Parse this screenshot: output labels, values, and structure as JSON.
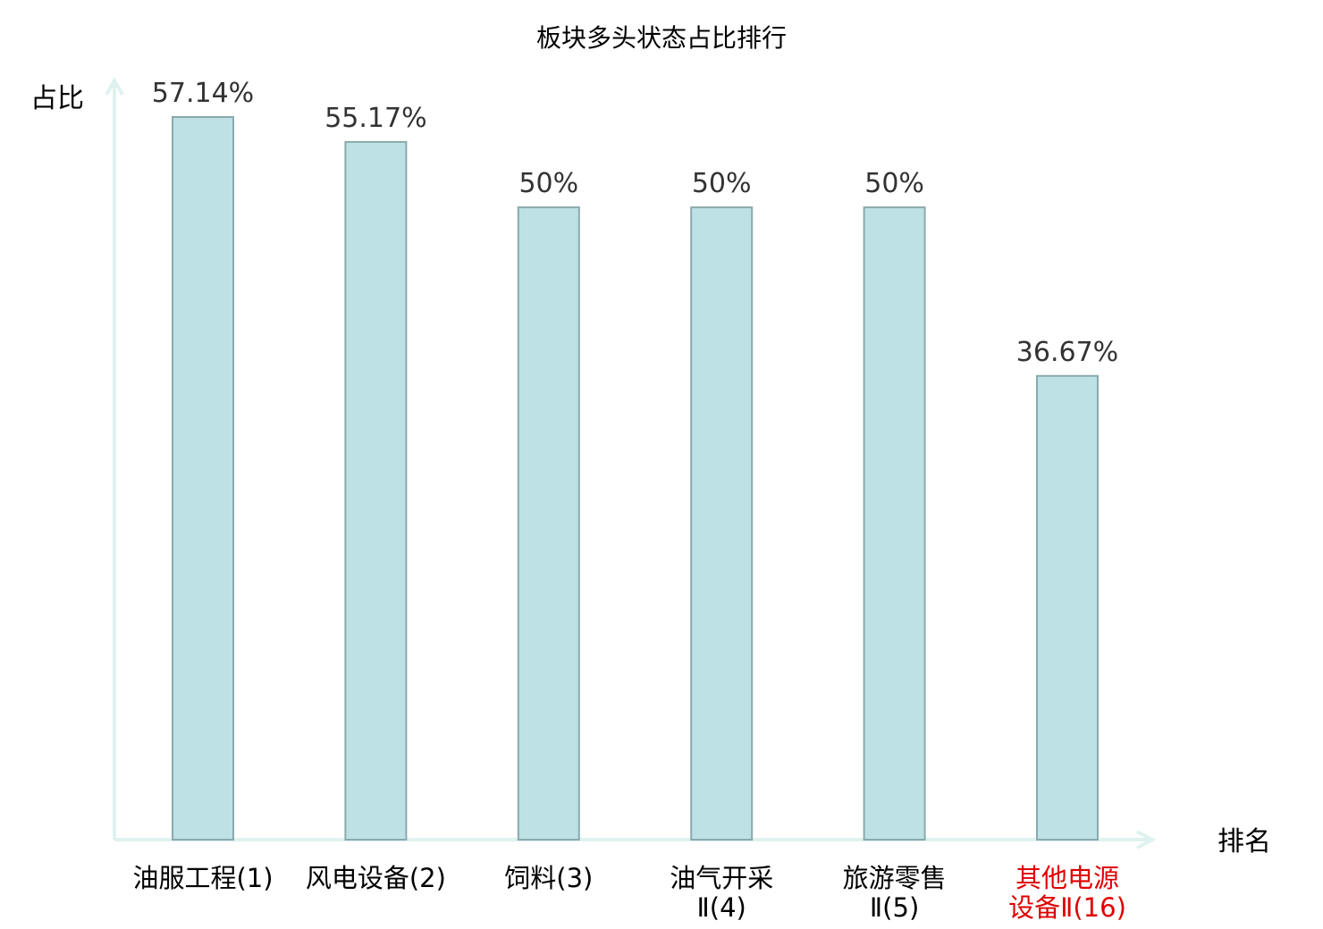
{
  "chart_data": {
    "type": "bar",
    "title": "板块多头状态占比排行",
    "ylabel": "占比",
    "xlabel": "排名",
    "categories": [
      {
        "lines": [
          "油服工程(1)"
        ],
        "color": "#000000"
      },
      {
        "lines": [
          "风电设备(2)"
        ],
        "color": "#000000"
      },
      {
        "lines": [
          "饲料(3)"
        ],
        "color": "#000000"
      },
      {
        "lines": [
          "油气开采",
          "Ⅱ(4)"
        ],
        "color": "#000000"
      },
      {
        "lines": [
          "旅游零售",
          "Ⅱ(5)"
        ],
        "color": "#000000"
      },
      {
        "lines": [
          "其他电源",
          "设备Ⅱ(16)"
        ],
        "color": "#e00000"
      }
    ],
    "values": [
      57.14,
      55.17,
      50,
      50,
      50,
      36.67
    ],
    "value_labels": [
      "57.14%",
      "55.17%",
      "50%",
      "50%",
      "50%",
      "36.67%"
    ],
    "ylim": [
      0,
      57.14
    ],
    "grid": false,
    "colors": {
      "bar_fill": "#bde1e4",
      "bar_stroke": "#8aaaad",
      "axis": "#dff2f0",
      "highlight": "#e00000"
    }
  }
}
